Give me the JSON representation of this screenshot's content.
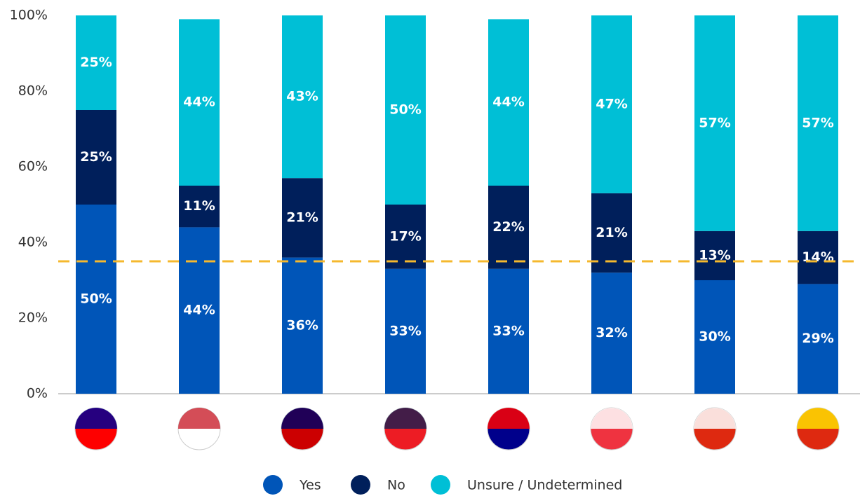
{
  "chart_data": {
    "type": "stacked_bar",
    "categories": [
      null,
      null,
      null,
      null,
      null,
      null,
      null,
      null
    ],
    "series": [
      {
        "name": "Yes",
        "color": "#0055b8",
        "values": [
          50,
          44,
          36,
          33,
          33,
          32,
          30,
          29
        ],
        "value_labels": [
          "50%",
          "44%",
          "36%",
          "33%",
          "33%",
          "32%",
          "30%",
          "29%"
        ]
      },
      {
        "name": "No",
        "color": "#001f5b",
        "values": [
          25,
          11,
          21,
          17,
          22,
          21,
          13,
          14
        ],
        "value_labels": [
          "25%",
          "11%",
          "21%",
          "17%",
          "22%",
          "21%",
          "13%",
          "14%"
        ]
      },
      {
        "name": "Unsure / Undetermined",
        "color": "#00bfd6",
        "values": [
          25,
          44,
          43,
          50,
          44,
          47,
          57,
          57
        ],
        "value_labels": [
          "25%",
          "44%",
          "43%",
          "50%",
          "44%",
          "47%",
          "57%",
          "57%"
        ]
      }
    ],
    "ylim": [
      0,
      100
    ],
    "yticks": [
      {
        "value": 0,
        "label": "0%"
      },
      {
        "value": 20,
        "label": "20%"
      },
      {
        "value": 40,
        "label": "40%"
      },
      {
        "value": 60,
        "label": "60%"
      },
      {
        "value": 80,
        "label": "80%"
      },
      {
        "value": 100,
        "label": "100%"
      }
    ],
    "reference_line": {
      "value": 35,
      "color": "#f5b82e"
    },
    "legend": "bottom"
  }
}
